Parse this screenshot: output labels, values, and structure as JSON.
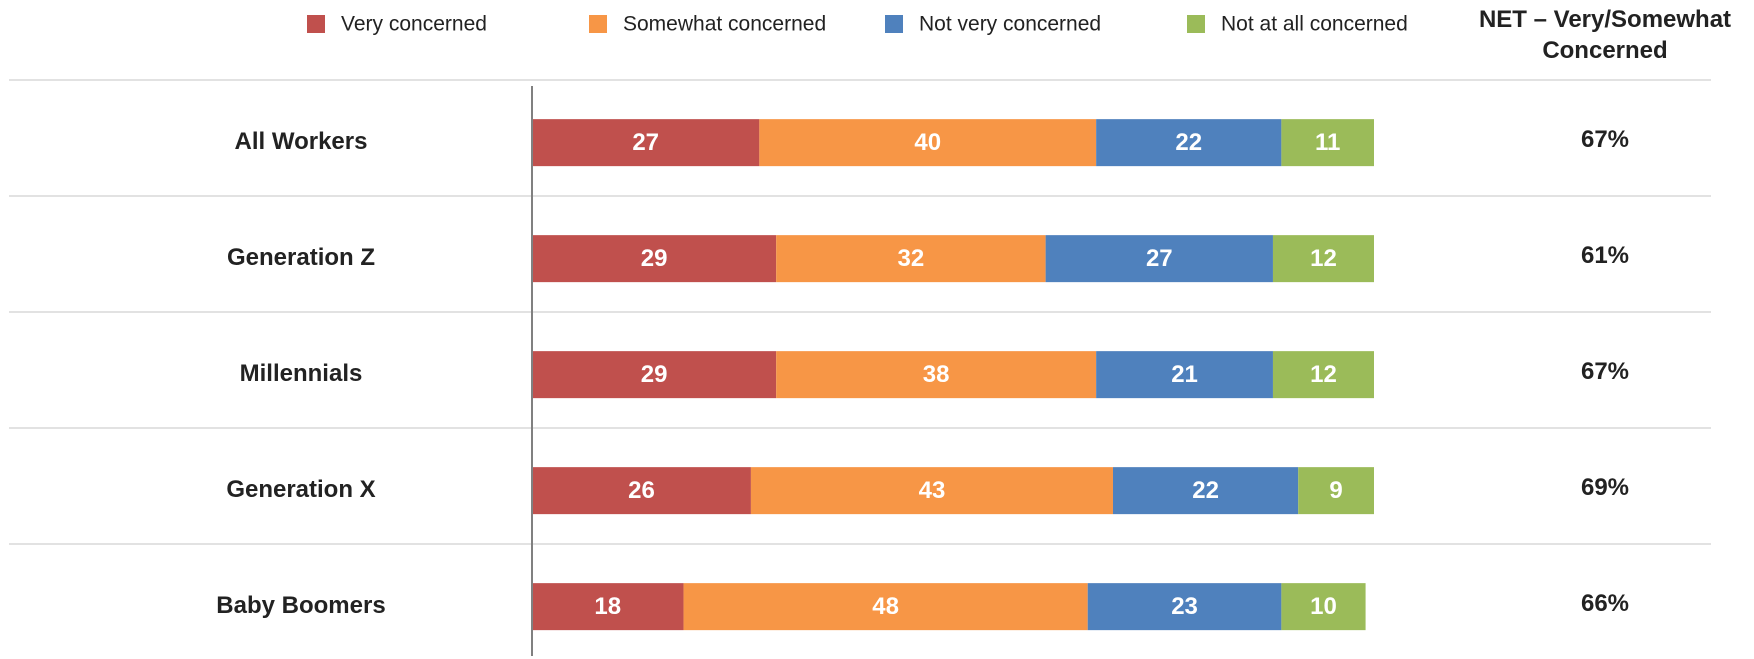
{
  "chart_data": {
    "type": "stacked_bar_horizontal",
    "categories": [
      "All Workers",
      "Generation Z",
      "Millennials",
      "Generation X",
      "Baby Boomers"
    ],
    "series": [
      {
        "name": "Very concerned",
        "color": "#c0504d",
        "values": [
          27,
          29,
          29,
          26,
          18
        ]
      },
      {
        "name": "Somewhat concerned",
        "color": "#f79646",
        "values": [
          40,
          32,
          38,
          43,
          48
        ]
      },
      {
        "name": "Not very concerned",
        "color": "#4f81bd",
        "values": [
          22,
          27,
          21,
          22,
          23
        ]
      },
      {
        "name": "Not at all concerned",
        "color": "#9bbb59",
        "values": [
          11,
          12,
          12,
          9,
          10
        ]
      }
    ],
    "net": {
      "title": "NET – Very/Somewhat Concerned",
      "values": [
        67,
        61,
        67,
        69,
        66
      ],
      "value_labels": [
        "67%",
        "61%",
        "67%",
        "69%",
        "66%"
      ]
    }
  }
}
